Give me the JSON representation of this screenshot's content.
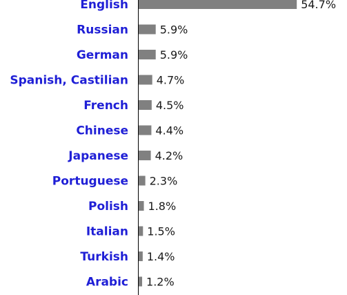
{
  "chart_data": {
    "type": "bar",
    "orientation": "horizontal",
    "categories": [
      "English",
      "Russian",
      "German",
      "Spanish, Castilian",
      "French",
      "Chinese",
      "Japanese",
      "Portuguese",
      "Polish",
      "Italian",
      "Turkish",
      "Arabic"
    ],
    "values": [
      54.7,
      5.9,
      5.9,
      4.7,
      4.5,
      4.4,
      4.2,
      2.3,
      1.8,
      1.5,
      1.4,
      1.2
    ],
    "value_labels": [
      "54.7%",
      "5.9%",
      "5.9%",
      "4.7%",
      "4.5%",
      "4.4%",
      "4.2%",
      "2.3%",
      "1.8%",
      "1.5%",
      "1.4%",
      "1.2%"
    ],
    "unit": "%",
    "colors": {
      "bar": "#808080",
      "category_label": "#1f1fd6",
      "value_label": "#1a1a1a",
      "axis": "#000000"
    }
  }
}
